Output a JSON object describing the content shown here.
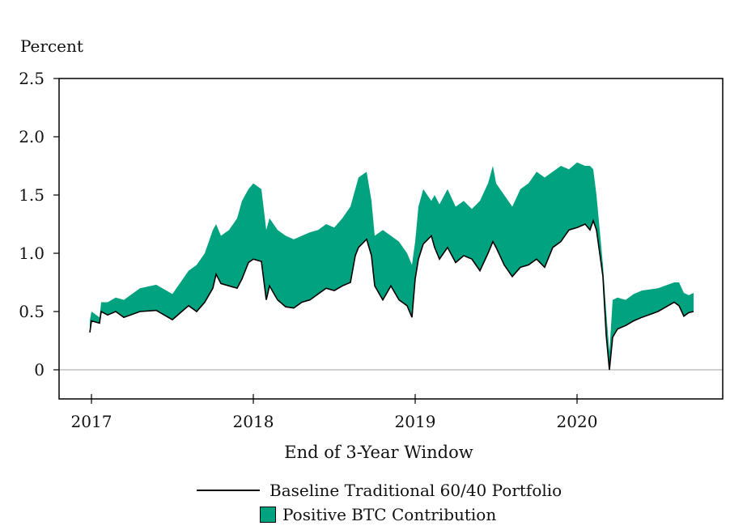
{
  "chart_data": {
    "type": "area",
    "ylabel": "Percent",
    "xlabel": "End of 3-Year Window",
    "ylim": [
      -0.25,
      2.5
    ],
    "yticks": [
      {
        "value": 2.5,
        "label": "2.5"
      },
      {
        "value": 2.0,
        "label": "2.0"
      },
      {
        "value": 1.5,
        "label": "1.5"
      },
      {
        "value": 1.0,
        "label": "1.0"
      },
      {
        "value": 0.5,
        "label": "0.5"
      },
      {
        "value": 0,
        "label": "0"
      }
    ],
    "xlim": [
      2016.8,
      2020.9
    ],
    "xticks": [
      {
        "value": 2017,
        "label": "2017"
      },
      {
        "value": 2018,
        "label": "2018"
      },
      {
        "value": 2019,
        "label": "2019"
      },
      {
        "value": 2020,
        "label": "2020"
      }
    ],
    "zero_line": true,
    "colors": {
      "baseline": "#000000",
      "btc_fill": "#00a27f",
      "zero_line": "#b5b5b5"
    },
    "legend_position": "bottom",
    "series": [
      {
        "name": "Baseline Traditional 60/40 Portfolio",
        "kind": "line",
        "x": [
          2016.99,
          2017.0,
          2017.05,
          2017.06,
          2017.1,
          2017.15,
          2017.2,
          2017.3,
          2017.4,
          2017.5,
          2017.55,
          2017.6,
          2017.65,
          2017.7,
          2017.75,
          2017.77,
          2017.8,
          2017.85,
          2017.9,
          2017.93,
          2017.97,
          2018.0,
          2018.05,
          2018.08,
          2018.1,
          2018.15,
          2018.2,
          2018.25,
          2018.3,
          2018.35,
          2018.4,
          2018.45,
          2018.5,
          2018.55,
          2018.6,
          2018.63,
          2018.65,
          2018.7,
          2018.73,
          2018.75,
          2018.8,
          2018.85,
          2018.9,
          2018.95,
          2018.98,
          2019.0,
          2019.02,
          2019.05,
          2019.1,
          2019.12,
          2019.15,
          2019.2,
          2019.25,
          2019.3,
          2019.35,
          2019.4,
          2019.45,
          2019.48,
          2019.5,
          2019.55,
          2019.6,
          2019.65,
          2019.7,
          2019.75,
          2019.8,
          2019.85,
          2019.9,
          2019.95,
          2020.0,
          2020.05,
          2020.08,
          2020.1,
          2020.12,
          2020.14,
          2020.16,
          2020.18,
          2020.2,
          2020.22,
          2020.25,
          2020.3,
          2020.35,
          2020.4,
          2020.5,
          2020.6,
          2020.63,
          2020.66,
          2020.69,
          2020.72
        ],
        "y": [
          0.32,
          0.42,
          0.4,
          0.5,
          0.47,
          0.5,
          0.45,
          0.5,
          0.51,
          0.43,
          0.49,
          0.55,
          0.5,
          0.58,
          0.7,
          0.82,
          0.74,
          0.72,
          0.7,
          0.78,
          0.92,
          0.95,
          0.93,
          0.6,
          0.72,
          0.6,
          0.54,
          0.53,
          0.58,
          0.6,
          0.65,
          0.7,
          0.68,
          0.72,
          0.75,
          0.98,
          1.05,
          1.12,
          0.98,
          0.72,
          0.6,
          0.72,
          0.6,
          0.55,
          0.45,
          0.78,
          0.95,
          1.08,
          1.15,
          1.05,
          0.95,
          1.05,
          0.92,
          0.98,
          0.95,
          0.85,
          1.0,
          1.1,
          1.05,
          0.9,
          0.8,
          0.88,
          0.9,
          0.95,
          0.88,
          1.05,
          1.1,
          1.2,
          1.22,
          1.25,
          1.2,
          1.28,
          1.2,
          1.0,
          0.8,
          0.3,
          0.0,
          0.28,
          0.35,
          0.38,
          0.42,
          0.45,
          0.5,
          0.58,
          0.55,
          0.46,
          0.49,
          0.5
        ]
      },
      {
        "name": "Positive BTC Contribution",
        "kind": "fill_between",
        "x": [
          2016.99,
          2017.0,
          2017.05,
          2017.06,
          2017.1,
          2017.15,
          2017.2,
          2017.3,
          2017.4,
          2017.5,
          2017.55,
          2017.6,
          2017.65,
          2017.7,
          2017.75,
          2017.77,
          2017.8,
          2017.85,
          2017.9,
          2017.93,
          2017.97,
          2018.0,
          2018.05,
          2018.08,
          2018.1,
          2018.15,
          2018.2,
          2018.25,
          2018.3,
          2018.35,
          2018.4,
          2018.45,
          2018.5,
          2018.55,
          2018.6,
          2018.63,
          2018.65,
          2018.7,
          2018.73,
          2018.75,
          2018.8,
          2018.85,
          2018.9,
          2018.95,
          2018.98,
          2019.0,
          2019.02,
          2019.05,
          2019.1,
          2019.12,
          2019.15,
          2019.2,
          2019.25,
          2019.3,
          2019.35,
          2019.4,
          2019.45,
          2019.48,
          2019.5,
          2019.55,
          2019.6,
          2019.65,
          2019.7,
          2019.75,
          2019.8,
          2019.85,
          2019.9,
          2019.95,
          2020.0,
          2020.05,
          2020.08,
          2020.1,
          2020.12,
          2020.14,
          2020.16,
          2020.18,
          2020.2,
          2020.22,
          2020.25,
          2020.3,
          2020.35,
          2020.4,
          2020.5,
          2020.6,
          2020.63,
          2020.66,
          2020.69,
          2020.72
        ],
        "y": [
          0.42,
          0.5,
          0.45,
          0.58,
          0.58,
          0.62,
          0.6,
          0.7,
          0.73,
          0.65,
          0.75,
          0.85,
          0.9,
          1.0,
          1.2,
          1.25,
          1.15,
          1.2,
          1.3,
          1.45,
          1.55,
          1.6,
          1.55,
          1.2,
          1.3,
          1.2,
          1.15,
          1.12,
          1.15,
          1.18,
          1.2,
          1.25,
          1.22,
          1.3,
          1.4,
          1.55,
          1.65,
          1.7,
          1.45,
          1.15,
          1.2,
          1.15,
          1.1,
          1.0,
          0.9,
          1.1,
          1.4,
          1.55,
          1.45,
          1.5,
          1.42,
          1.55,
          1.4,
          1.45,
          1.38,
          1.45,
          1.6,
          1.75,
          1.6,
          1.5,
          1.4,
          1.55,
          1.6,
          1.7,
          1.65,
          1.7,
          1.75,
          1.72,
          1.78,
          1.75,
          1.75,
          1.72,
          1.5,
          1.2,
          0.9,
          0.5,
          0.15,
          0.6,
          0.62,
          0.6,
          0.65,
          0.68,
          0.7,
          0.75,
          0.75,
          0.66,
          0.64,
          0.66
        ]
      }
    ]
  }
}
